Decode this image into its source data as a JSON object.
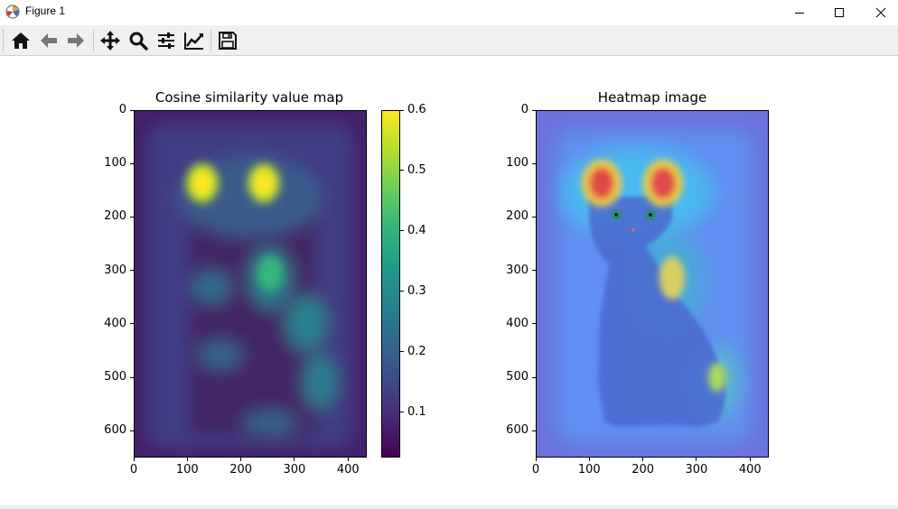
{
  "window": {
    "title": "Figure 1",
    "icons": [
      "matplotlib-icon",
      "minimize-icon",
      "maximize-icon",
      "close-icon"
    ]
  },
  "toolbar": {
    "items": [
      {
        "icon": "home-icon"
      },
      {
        "icon": "back-arrow-icon"
      },
      {
        "icon": "forward-arrow-icon"
      },
      {
        "icon": "pan-icon"
      },
      {
        "icon": "zoom-icon"
      },
      {
        "icon": "configure-subplots-icon"
      },
      {
        "icon": "edit-axes-icon"
      },
      {
        "icon": "save-icon"
      }
    ]
  },
  "plots": [
    {
      "title": "Cosine similarity value map",
      "xticks": [
        "0",
        "100",
        "200",
        "300",
        "400"
      ],
      "yticks": [
        "0",
        "100",
        "200",
        "300",
        "400",
        "500",
        "600"
      ]
    },
    {
      "title": "Heatmap image",
      "xticks": [
        "0",
        "100",
        "200",
        "300",
        "400"
      ],
      "yticks": [
        "0",
        "100",
        "200",
        "300",
        "400",
        "500",
        "600"
      ]
    }
  ],
  "colorbar": {
    "ticks": [
      "0.1",
      "0.2",
      "0.3",
      "0.4",
      "0.5",
      "0.6"
    ],
    "range": [
      0.025,
      0.6
    ],
    "colormap": "viridis"
  },
  "chart_data": [
    {
      "type": "heatmap",
      "title": "Cosine similarity value map",
      "xlim": [
        0,
        435
      ],
      "ylim": [
        650,
        0
      ],
      "xticks": [
        0,
        100,
        200,
        300,
        400
      ],
      "yticks": [
        0,
        100,
        200,
        300,
        400,
        500,
        600
      ],
      "colorbar": {
        "min": 0.025,
        "max": 0.6,
        "ticks": [
          0.1,
          0.2,
          0.3,
          0.4,
          0.5,
          0.6
        ]
      },
      "hotspots": [
        {
          "x": 125,
          "y": 130,
          "value": 0.6
        },
        {
          "x": 240,
          "y": 130,
          "value": 0.6
        },
        {
          "x": 260,
          "y": 310,
          "value": 0.35
        },
        {
          "x": 330,
          "y": 380,
          "value": 0.3
        },
        {
          "x": 350,
          "y": 500,
          "value": 0.3
        }
      ]
    },
    {
      "type": "heatmap",
      "title": "Heatmap image",
      "xlim": [
        0,
        435
      ],
      "ylim": [
        650,
        0
      ],
      "xticks": [
        0,
        100,
        200,
        300,
        400
      ],
      "yticks": [
        0,
        100,
        200,
        300,
        400,
        500,
        600
      ]
    }
  ],
  "colors": {
    "toolbar_bg": "#f0f0f0",
    "viridis_low": "#440154",
    "viridis_high": "#fde725"
  }
}
